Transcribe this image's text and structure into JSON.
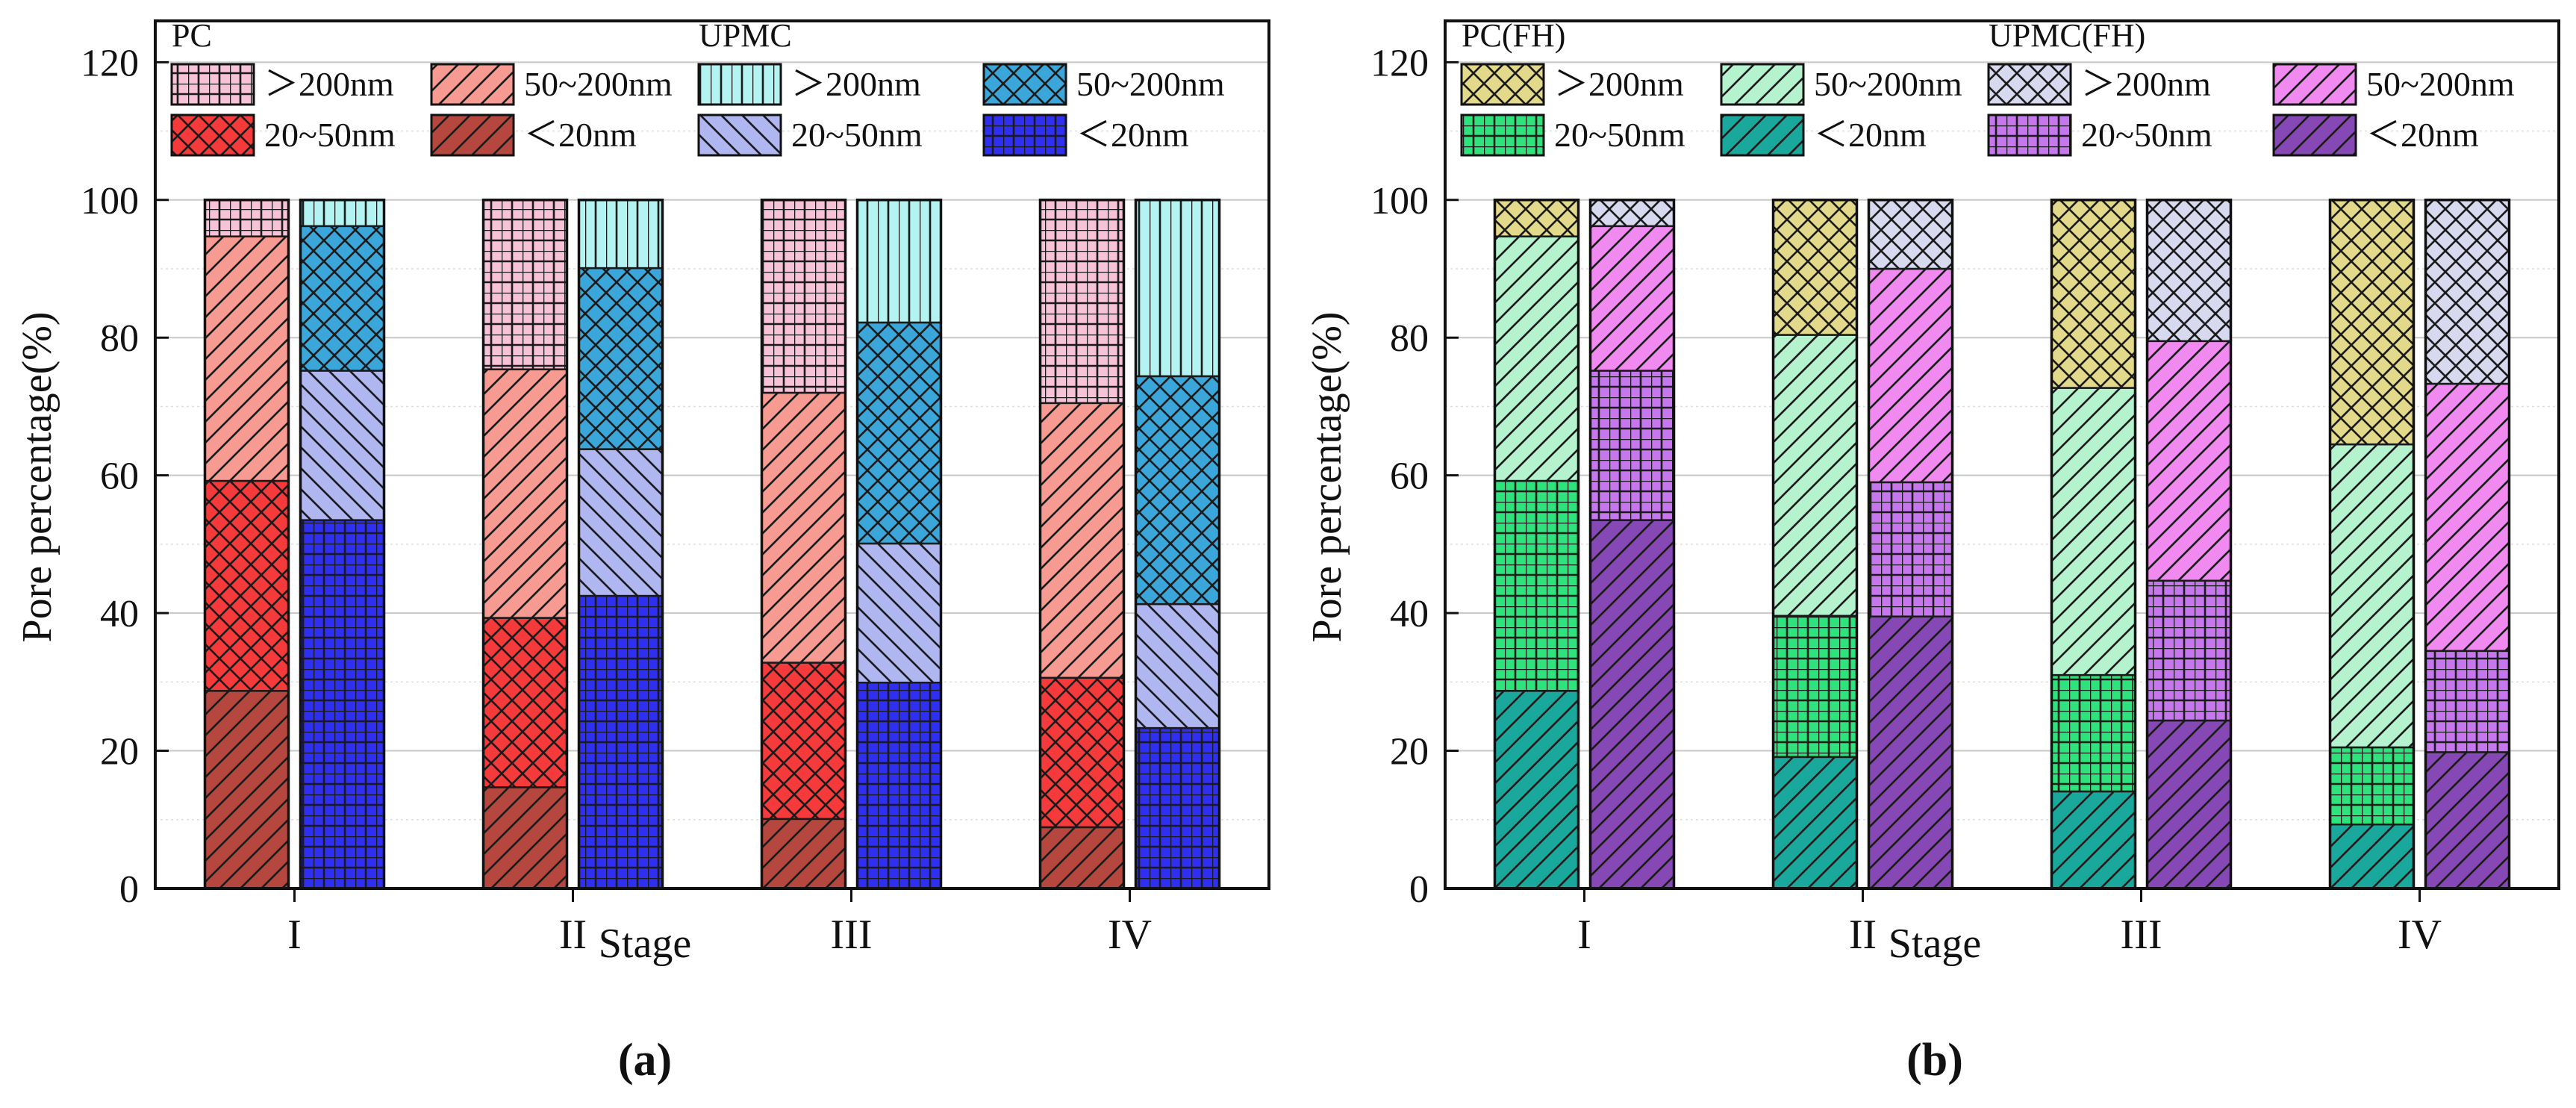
{
  "chart_data": [
    {
      "panel_label": "(a)",
      "type": "bar",
      "stacked": true,
      "xlabel": "Stage",
      "ylabel": "Pore percentage(%)",
      "ylim": [
        0,
        126
      ],
      "yticks": [
        0,
        20,
        40,
        60,
        80,
        100,
        120
      ],
      "categories": [
        "I",
        "II",
        "III",
        "IV"
      ],
      "grid": "horizontal",
      "legend_position": "top",
      "groups": [
        {
          "name": "PC",
          "series": [
            {
              "name": "<20nm",
              "label": "＜20nm",
              "color": "#b5473f",
              "pattern": "diag-right",
              "values": [
                28.7,
                14.7,
                10.1,
                8.9
              ]
            },
            {
              "name": "20~50nm",
              "label": "20~50nm",
              "color": "#f43a3a",
              "pattern": "cross-diag",
              "values": [
                30.5,
                24.6,
                22.7,
                21.7
              ]
            },
            {
              "name": "50~200nm",
              "label": "50~200nm",
              "color": "#f79a91",
              "pattern": "diag-right",
              "values": [
                35.5,
                36.1,
                39.2,
                39.9
              ]
            },
            {
              "name": ">200nm",
              "label": "＞200nm",
              "color": "#f7c2d7",
              "pattern": "grid",
              "values": [
                5.3,
                24.6,
                28.0,
                29.5
              ]
            }
          ]
        },
        {
          "name": "UPMC",
          "series": [
            {
              "name": "<20nm",
              "label": "＜20nm",
              "color": "#2f2ff2",
              "pattern": "grid",
              "values": [
                53.5,
                42.5,
                29.9,
                23.3
              ]
            },
            {
              "name": "20~50nm",
              "label": "20~50nm",
              "color": "#b0b6ef",
              "pattern": "diag-left",
              "values": [
                21.7,
                21.3,
                20.2,
                18.0
              ]
            },
            {
              "name": "50~200nm",
              "label": "50~200nm",
              "color": "#3aa6d9",
              "pattern": "cross-diag",
              "values": [
                21.0,
                26.3,
                32.1,
                33.1
              ]
            },
            {
              "name": ">200nm",
              "label": "＞200nm",
              "color": "#b3f3f2",
              "pattern": "vertical",
              "values": [
                3.8,
                9.9,
                17.8,
                25.6
              ]
            }
          ]
        }
      ]
    },
    {
      "panel_label": "(b)",
      "type": "bar",
      "stacked": true,
      "xlabel": "Stage",
      "ylabel": "Pore percentage(%)",
      "ylim": [
        0,
        126
      ],
      "yticks": [
        0,
        20,
        40,
        60,
        80,
        100,
        120
      ],
      "categories": [
        "I",
        "II",
        "III",
        "IV"
      ],
      "grid": "horizontal",
      "legend_position": "top",
      "groups": [
        {
          "name": "PC(FH)",
          "series": [
            {
              "name": "<20nm",
              "label": "＜20nm",
              "color": "#1aa89c",
              "pattern": "diag-right",
              "values": [
                28.7,
                19.1,
                14.1,
                9.3
              ]
            },
            {
              "name": "20~50nm",
              "label": "20~50nm",
              "color": "#2ee37c",
              "pattern": "grid",
              "values": [
                30.5,
                20.5,
                16.9,
                11.2
              ]
            },
            {
              "name": "50~200nm",
              "label": "50~200nm",
              "color": "#b5f2ce",
              "pattern": "diag-right",
              "values": [
                35.5,
                40.8,
                41.7,
                44.0
              ]
            },
            {
              "name": ">200nm",
              "label": "＞200nm",
              "color": "#e3d98a",
              "pattern": "cross-diag",
              "values": [
                5.3,
                19.6,
                27.3,
                35.5
              ]
            }
          ]
        },
        {
          "name": "UPMC(FH)",
          "series": [
            {
              "name": "<20nm",
              "label": "＜20nm",
              "color": "#8548b5",
              "pattern": "diag-right",
              "values": [
                53.5,
                39.5,
                24.4,
                19.8
              ]
            },
            {
              "name": "20~50nm",
              "label": "20~50nm",
              "color": "#c677ee",
              "pattern": "grid",
              "values": [
                21.7,
                19.5,
                20.3,
                14.7
              ]
            },
            {
              "name": "50~200nm",
              "label": "50~200nm",
              "color": "#f08af0",
              "pattern": "diag-right",
              "values": [
                21.0,
                31.0,
                34.8,
                38.8
              ]
            },
            {
              "name": ">200nm",
              "label": "＞200nm",
              "color": "#d7d9ef",
              "pattern": "cross-diag",
              "values": [
                3.8,
                10.0,
                20.5,
                26.7
              ]
            }
          ]
        }
      ]
    }
  ]
}
